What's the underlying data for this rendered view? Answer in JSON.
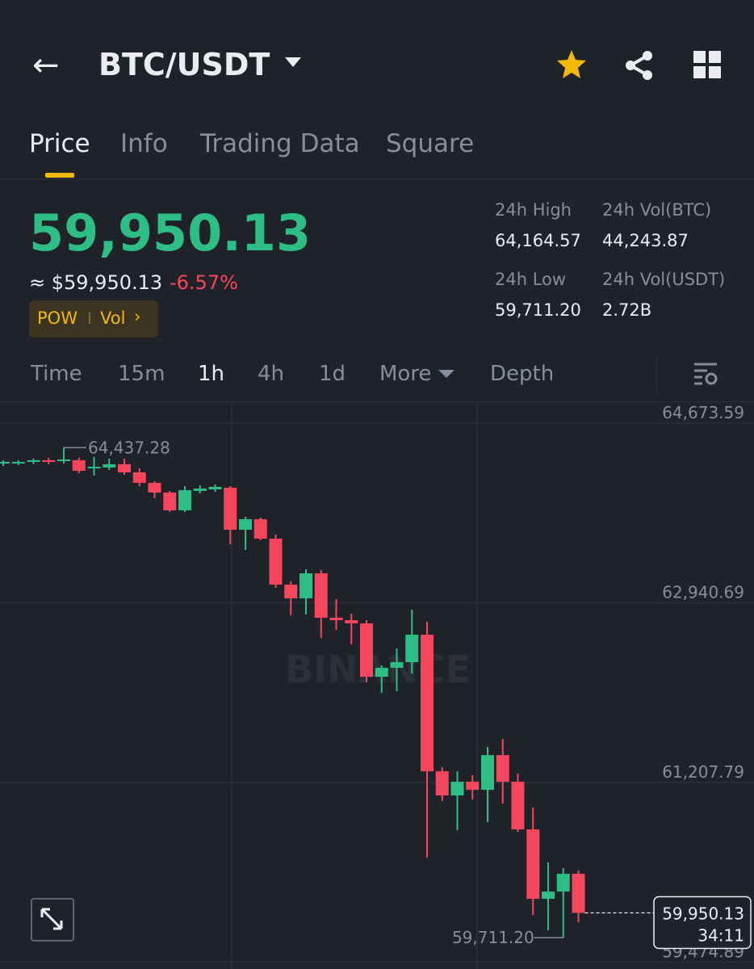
{
  "header": {
    "pair": "BTC/USDT"
  },
  "tabs": [
    "Price",
    "Info",
    "Trading Data",
    "Square"
  ],
  "price": {
    "last": "59,950.13",
    "usd": "≈ $59,950.13",
    "change": "-6.57%",
    "badges": [
      "POW",
      "Vol"
    ]
  },
  "stats": [
    {
      "label": "24h High",
      "value": "64,164.57"
    },
    {
      "label": "24h Vol(BTC)",
      "value": "44,243.87"
    },
    {
      "label": "24h Low",
      "value": "59,711.20"
    },
    {
      "label": "24h Vol(USDT)",
      "value": "2.72B"
    }
  ],
  "intervals": [
    "Time",
    "15m",
    "1h",
    "4h",
    "1d",
    "More",
    "Depth"
  ],
  "watermark": "BINANCE",
  "chart_data": {
    "type": "candlestick",
    "up_color": "#2ebd85",
    "down_color": "#f6465d",
    "ylim": [
      59409,
      64884
    ],
    "yticks": [
      {
        "value": 64673.59,
        "label": "64,673.59"
      },
      {
        "value": 62940.69,
        "label": "62,940.69"
      },
      {
        "value": 61207.79,
        "label": "61,207.79"
      },
      {
        "value": 59474.89,
        "label": "59,474.89"
      }
    ],
    "grid": true,
    "open": [
      64284,
      64292,
      64300,
      64316,
      64308,
      64316,
      64238,
      64246,
      64277,
      64199,
      64098,
      64004,
      63833,
      64020,
      64035,
      64051,
      63646,
      63747,
      63560,
      63116,
      62984,
      63225,
      62797,
      62773,
      62742,
      62228,
      62314,
      62368,
      62633,
      61316,
      61083,
      61215,
      61137,
      61472,
      61215,
      60756,
      60086,
      60156,
      60327
    ],
    "high": [
      64316,
      64316,
      64331,
      64339,
      64437.28,
      64339,
      64347,
      64331,
      64331,
      64238,
      64113,
      64020,
      64066,
      64074,
      64082,
      64066,
      63770,
      63763,
      63599,
      63148,
      63264,
      63256,
      62976,
      62836,
      62773,
      62337,
      62501,
      62875,
      62758,
      61355,
      61316,
      61278,
      61550,
      61628,
      61293,
      60966,
      60436,
      60382,
      60358
    ],
    "low": [
      64261,
      64269,
      64277,
      64277,
      64284,
      64191,
      64168,
      64222,
      64175,
      64066,
      63950,
      63817,
      63817,
      63996,
      64012,
      63506,
      63451,
      63545,
      63085,
      62820,
      62828,
      62602,
      62680,
      62540,
      62173,
      62072,
      62088,
      62259,
      60483,
      61028,
      60748,
      61044,
      60826,
      61005,
      60732,
      59930,
      59782,
      59711.2,
      59860
    ],
    "close": [
      64300,
      64300,
      64316,
      64300,
      64323,
      64214,
      64253,
      64277,
      64199,
      64098,
      64004,
      63833,
      64027,
      64043,
      64059,
      63646,
      63747,
      63560,
      63116,
      62984,
      63225,
      62797,
      62773,
      62742,
      62228,
      62314,
      62368,
      62633,
      61316,
      61083,
      61215,
      61137,
      61472,
      61215,
      60756,
      60086,
      60156,
      60327,
      59950.13
    ],
    "high_marker": {
      "value": 64437.28,
      "label": "64,437.28"
    },
    "low_marker": {
      "value": 59711.2,
      "label": "59,711.20"
    },
    "last_price": {
      "value": 59950.13,
      "label": "59,950.13"
    },
    "countdown": "34:11"
  }
}
